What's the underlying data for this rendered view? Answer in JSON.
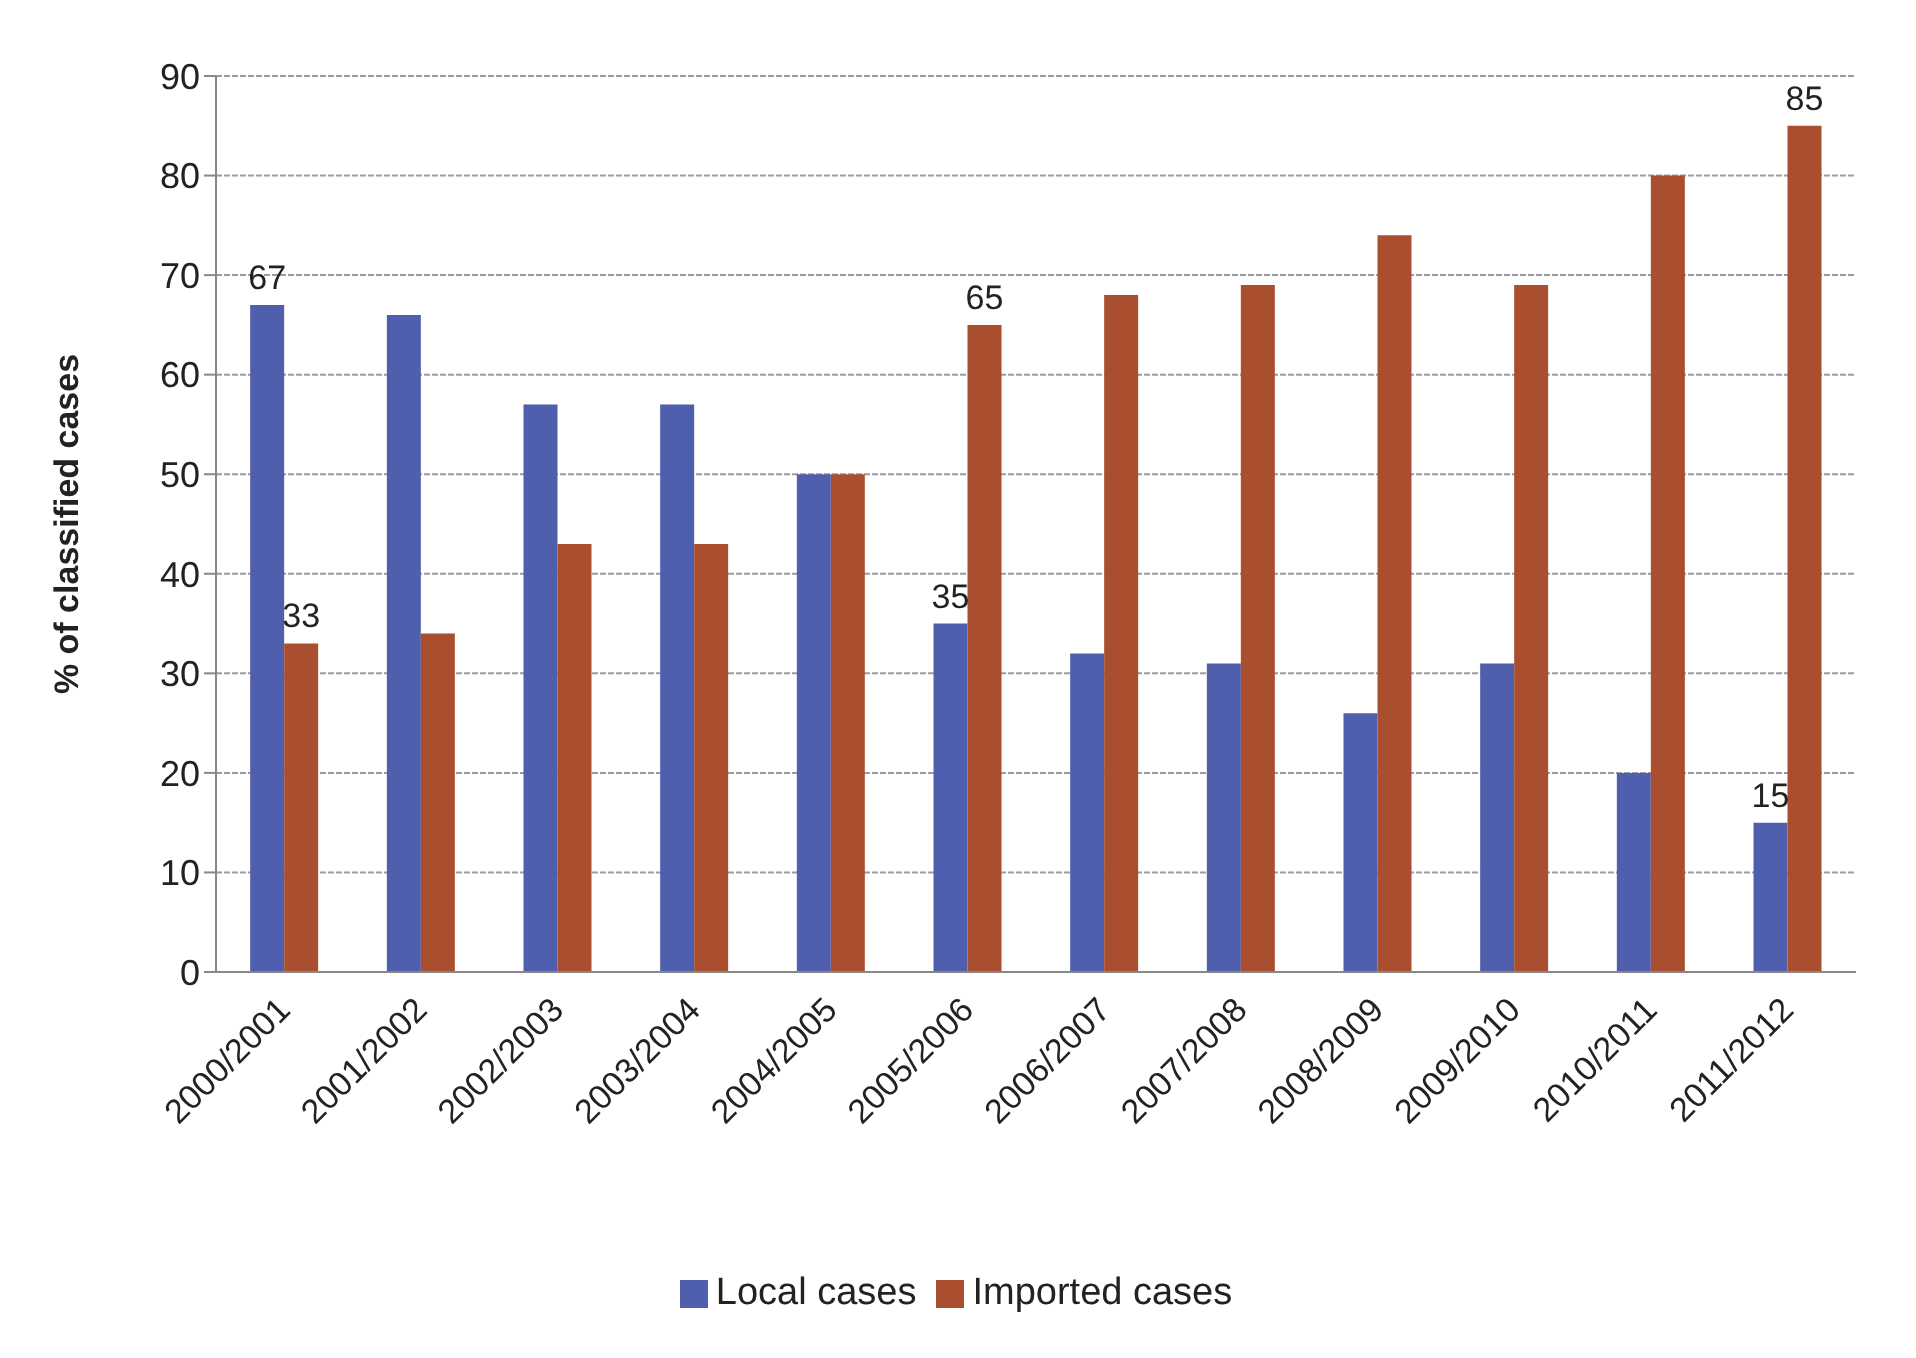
{
  "chart_data": {
    "type": "bar",
    "ylabel": "% of classified cases",
    "categories": [
      "2000/2001",
      "2001/2002",
      "2002/2003",
      "2003/2004",
      "2004/2005",
      "2005/2006",
      "2006/2007",
      "2007/2008",
      "2008/2009",
      "2009/2010",
      "2010/2011",
      "2011/2012"
    ],
    "series": [
      {
        "name": "Local cases",
        "color": "#4f5fae",
        "values": [
          67,
          66,
          57,
          57,
          50,
          35,
          32,
          31,
          26,
          31,
          20,
          15
        ],
        "value_labels": [
          "67",
          null,
          null,
          null,
          null,
          "35",
          null,
          null,
          null,
          null,
          null,
          "15"
        ]
      },
      {
        "name": "Imported cases",
        "color": "#a94e2e",
        "values": [
          33,
          34,
          43,
          43,
          50,
          65,
          68,
          69,
          74,
          69,
          80,
          85
        ],
        "value_labels": [
          "33",
          null,
          null,
          null,
          null,
          "65",
          null,
          null,
          null,
          null,
          null,
          "85"
        ]
      }
    ],
    "ylim": [
      0,
      90
    ],
    "yticks": [
      0,
      10,
      20,
      30,
      40,
      50,
      60,
      70,
      80,
      90
    ],
    "grid": "y",
    "legend": "bottom"
  }
}
